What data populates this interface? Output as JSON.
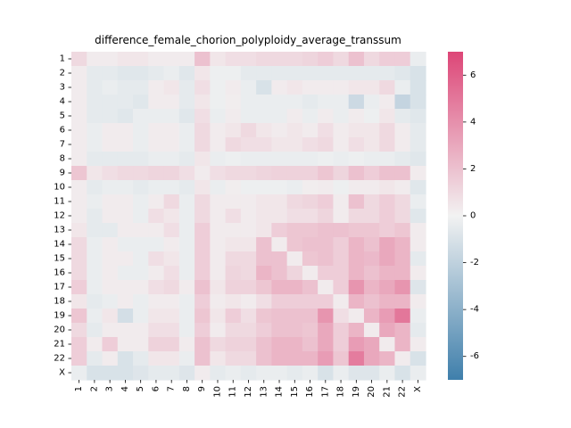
{
  "chart_data": {
    "type": "heatmap",
    "title": "difference_female_chorion_polyploidy_average_transsum",
    "xlabel": "",
    "ylabel": "",
    "x_categories": [
      "1",
      "2",
      "3",
      "4",
      "5",
      "6",
      "7",
      "8",
      "9",
      "10",
      "11",
      "12",
      "13",
      "14",
      "15",
      "16",
      "17",
      "18",
      "19",
      "20",
      "21",
      "22",
      "X"
    ],
    "y_categories": [
      "1",
      "2",
      "3",
      "4",
      "5",
      "6",
      "7",
      "8",
      "9",
      "10",
      "11",
      "12",
      "13",
      "14",
      "15",
      "16",
      "17",
      "18",
      "19",
      "20",
      "21",
      "22",
      "X"
    ],
    "colorbar": {
      "range": [
        -7,
        7
      ],
      "ticks": [
        "-6",
        "-4",
        "-2",
        "0",
        "2",
        "4",
        "6"
      ],
      "tick_values": [
        -6,
        -4,
        -2,
        0,
        2,
        4,
        6
      ],
      "color_low": "#3f7fab",
      "color_mid": "#f2f2f2",
      "color_high": "#dd4677"
    },
    "grid": false,
    "values": [
      [
        1.0,
        0.3,
        0.3,
        0.5,
        0.5,
        0.3,
        0.3,
        0.3,
        2.0,
        0.5,
        0.8,
        0.8,
        1.0,
        1.0,
        1.0,
        1.2,
        1.5,
        1.0,
        2.0,
        1.0,
        1.5,
        1.5,
        -0.3
      ],
      [
        0.3,
        -0.5,
        -0.5,
        -0.7,
        -0.7,
        -0.5,
        -0.3,
        -0.7,
        0.5,
        -0.2,
        -0.2,
        -0.5,
        -0.5,
        -0.5,
        -0.5,
        -0.5,
        -0.5,
        -0.5,
        -0.5,
        -0.5,
        -0.5,
        -0.7,
        -1.0
      ],
      [
        0.3,
        -0.5,
        -0.3,
        -0.5,
        -0.5,
        0.3,
        0.5,
        -0.5,
        0.8,
        -0.2,
        0.3,
        -0.3,
        -1.0,
        0.3,
        0.5,
        0.3,
        0.3,
        0.3,
        0.5,
        0.5,
        1.0,
        -0.3,
        -1.0
      ],
      [
        0.3,
        -0.5,
        -0.5,
        -0.5,
        -0.7,
        0.3,
        0.3,
        -0.5,
        0.5,
        -0.2,
        0.2,
        -0.3,
        -0.3,
        -0.3,
        -0.3,
        -0.5,
        -0.3,
        -0.3,
        -1.5,
        -0.3,
        0.3,
        -1.8,
        -1.0
      ],
      [
        0.3,
        -0.5,
        -0.5,
        -0.7,
        -0.3,
        -0.3,
        -0.3,
        -0.7,
        0.8,
        -0.3,
        0.3,
        -0.3,
        -0.3,
        -0.3,
        0.3,
        -0.3,
        0.3,
        -0.3,
        0.3,
        -0.2,
        0.5,
        -0.5,
        -0.7
      ],
      [
        0.3,
        -0.3,
        0.3,
        0.3,
        -0.3,
        0.3,
        0.3,
        -0.3,
        1.0,
        0.3,
        0.5,
        1.0,
        0.5,
        0.3,
        0.5,
        0.3,
        0.8,
        0.3,
        0.5,
        0.5,
        1.0,
        0.3,
        -0.5
      ],
      [
        0.3,
        -0.3,
        0.3,
        0.3,
        -0.3,
        0.3,
        0.3,
        -0.3,
        1.0,
        0.3,
        1.0,
        0.8,
        0.8,
        0.5,
        0.5,
        0.8,
        1.0,
        0.3,
        0.8,
        0.5,
        1.0,
        0.3,
        -0.5
      ],
      [
        0.3,
        -0.5,
        -0.5,
        -0.5,
        -0.5,
        -0.3,
        -0.3,
        -0.5,
        0.5,
        -0.3,
        -0.2,
        -0.3,
        -0.3,
        -0.3,
        -0.3,
        -0.3,
        -0.2,
        -0.3,
        -0.2,
        -0.3,
        -0.3,
        -0.5,
        -0.7
      ],
      [
        1.8,
        0.5,
        0.8,
        1.0,
        1.0,
        1.2,
        1.2,
        0.8,
        0.3,
        0.8,
        1.0,
        1.0,
        1.2,
        1.3,
        1.3,
        1.3,
        1.8,
        1.2,
        2.0,
        1.5,
        2.0,
        2.0,
        0.3
      ],
      [
        0.3,
        -0.5,
        -0.3,
        -0.3,
        -0.5,
        -0.3,
        -0.3,
        -0.5,
        0.5,
        -0.3,
        0.2,
        -0.2,
        -0.2,
        -0.2,
        -0.3,
        0.2,
        0.3,
        -0.2,
        0.3,
        0.3,
        0.5,
        0.3,
        -0.7
      ],
      [
        0.3,
        -0.3,
        0.3,
        0.3,
        -0.3,
        0.3,
        1.0,
        -0.3,
        1.0,
        0.3,
        0.3,
        0.3,
        0.5,
        0.5,
        1.0,
        1.2,
        1.5,
        0.3,
        2.0,
        1.0,
        1.5,
        1.0,
        -0.3
      ],
      [
        0.3,
        -0.5,
        0.3,
        0.3,
        -0.3,
        0.8,
        0.5,
        -0.3,
        1.0,
        0.3,
        0.8,
        0.3,
        0.5,
        0.5,
        0.8,
        0.8,
        1.2,
        0.3,
        1.0,
        1.0,
        1.5,
        1.0,
        -0.7
      ],
      [
        0.5,
        -0.5,
        -0.5,
        0.3,
        0.3,
        0.3,
        0.8,
        -0.3,
        1.5,
        0.3,
        0.3,
        0.3,
        0.5,
        1.5,
        1.8,
        1.8,
        2.0,
        2.0,
        1.8,
        1.8,
        1.5,
        1.8,
        0.3
      ],
      [
        1.0,
        -0.3,
        0.3,
        -0.3,
        -0.3,
        -0.3,
        0.3,
        -0.3,
        1.5,
        0.3,
        0.5,
        0.5,
        2.0,
        0.3,
        1.8,
        2.0,
        2.0,
        1.5,
        2.5,
        2.0,
        3.0,
        2.5,
        0.3
      ],
      [
        1.0,
        -0.3,
        0.3,
        0.3,
        -0.3,
        0.8,
        0.5,
        -0.3,
        1.5,
        0.3,
        1.0,
        1.0,
        2.0,
        2.0,
        0.3,
        1.8,
        2.0,
        1.5,
        2.5,
        2.3,
        3.0,
        2.5,
        -0.5
      ],
      [
        1.0,
        -0.3,
        0.3,
        -0.3,
        -0.3,
        0.3,
        0.8,
        -0.3,
        1.5,
        0.3,
        1.2,
        1.0,
        2.5,
        2.0,
        1.2,
        0.3,
        1.5,
        1.5,
        2.5,
        2.0,
        2.5,
        2.5,
        0.3
      ],
      [
        1.5,
        -0.3,
        0.3,
        0.3,
        0.3,
        0.8,
        1.0,
        0.3,
        2.0,
        0.5,
        1.3,
        1.3,
        1.8,
        2.5,
        2.5,
        2.0,
        0.3,
        1.5,
        3.8,
        2.5,
        3.0,
        3.8,
        -0.8
      ],
      [
        0.5,
        -0.5,
        -0.3,
        0.3,
        -0.3,
        0.3,
        0.3,
        -0.3,
        1.5,
        0.3,
        0.5,
        0.3,
        0.8,
        1.5,
        1.5,
        1.5,
        1.5,
        0.3,
        2.5,
        2.0,
        2.5,
        2.5,
        0.3
      ],
      [
        1.8,
        -0.3,
        0.5,
        -1.2,
        -0.3,
        0.5,
        0.5,
        -0.3,
        1.8,
        0.5,
        1.5,
        0.8,
        1.8,
        2.0,
        2.0,
        2.0,
        3.8,
        0.8,
        0.3,
        2.5,
        3.5,
        5.0,
        -0.3
      ],
      [
        1.0,
        -0.5,
        0.3,
        0.3,
        0.3,
        0.8,
        0.8,
        -0.3,
        1.5,
        0.3,
        1.0,
        1.0,
        1.5,
        2.0,
        2.0,
        1.8,
        3.0,
        1.5,
        2.5,
        0.3,
        3.0,
        2.5,
        -0.5
      ],
      [
        1.5,
        0.3,
        1.5,
        0.3,
        0.3,
        1.3,
        1.3,
        0.3,
        2.0,
        1.0,
        1.3,
        1.3,
        2.0,
        2.5,
        2.5,
        2.0,
        3.0,
        1.5,
        3.5,
        3.0,
        0.3,
        2.5,
        0.3
      ],
      [
        1.5,
        -0.5,
        0.3,
        -1.0,
        -0.5,
        0.5,
        0.5,
        -0.3,
        2.0,
        0.5,
        1.0,
        1.0,
        2.0,
        2.5,
        2.5,
        2.5,
        3.5,
        1.8,
        4.8,
        3.0,
        2.5,
        0.3,
        -1.0
      ],
      [
        -0.3,
        -1.0,
        -1.0,
        -1.0,
        -0.8,
        -0.5,
        -0.5,
        -0.8,
        0.3,
        -0.5,
        -0.3,
        -0.5,
        -0.3,
        -0.3,
        -0.5,
        -0.3,
        -1.0,
        -0.3,
        -0.8,
        -0.8,
        -0.3,
        -1.0,
        -0.3
      ]
    ]
  }
}
